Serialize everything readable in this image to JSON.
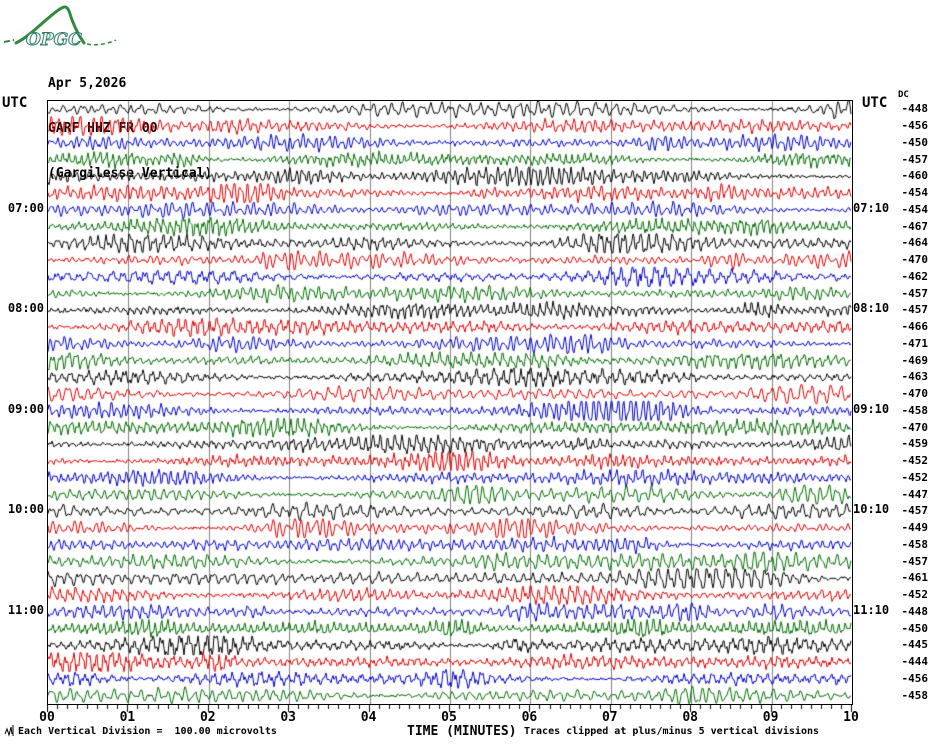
{
  "title": {
    "date": "Apr 5,2026",
    "station": "GARF HHZ FR 00",
    "channel_desc": "(Gargilesse Vertical)"
  },
  "logo_text": "OPGC",
  "labels": {
    "utc_left": "UTC",
    "utc_right": "UTC",
    "dc": "DC"
  },
  "footer": {
    "scale_text": "Each Vertical Division =  100.00 microvolts",
    "time_axis_title": "TIME (MINUTES)",
    "clip_text": "Traces clipped at plus/minus 5 vertical divisions"
  },
  "chart_data": {
    "type": "line",
    "variant": "helicorder-seismogram",
    "num_rows": 36,
    "minutes_per_row": 10,
    "x_title": "TIME (MINUTES)",
    "x_ticks": [
      "00",
      "01",
      "02",
      "03",
      "04",
      "05",
      "06",
      "07",
      "08",
      "09",
      "10"
    ],
    "minor_ticks_per_minute": 7,
    "left_time_labels": [
      {
        "row": 7,
        "label": "07:00"
      },
      {
        "row": 13,
        "label": "08:00"
      },
      {
        "row": 19,
        "label": "09:00"
      },
      {
        "row": 25,
        "label": "10:00"
      },
      {
        "row": 31,
        "label": "11:00"
      }
    ],
    "right_time_labels": [
      {
        "row": 7,
        "label": "07:10"
      },
      {
        "row": 13,
        "label": "08:10"
      },
      {
        "row": 19,
        "label": "09:10"
      },
      {
        "row": 25,
        "label": "10:10"
      },
      {
        "row": 31,
        "label": "11:10"
      }
    ],
    "dc_offsets": [
      -448,
      -456,
      -450,
      -457,
      -460,
      -454,
      -454,
      -467,
      -464,
      -470,
      -462,
      -457,
      -457,
      -466,
      -471,
      -469,
      -463,
      -470,
      -458,
      -470,
      -459,
      -452,
      -452,
      -447,
      -457,
      -449,
      -458,
      -457,
      -461,
      -452,
      -448,
      -450,
      -445,
      -444,
      -456,
      -458
    ],
    "trace_color_cycle": [
      "#000000",
      "#e00000",
      "#0000d0",
      "#006e00"
    ],
    "grid_color": "#808080",
    "scale_note": "Each Vertical Division =  100.00 microvolts",
    "clip_note": "Traces clipped at plus/minus 5 vertical divisions"
  },
  "colors": {
    "logo_green": "#2e8b3a",
    "logo_text_stroke": "#2f7d6a",
    "axis": "#000000"
  }
}
